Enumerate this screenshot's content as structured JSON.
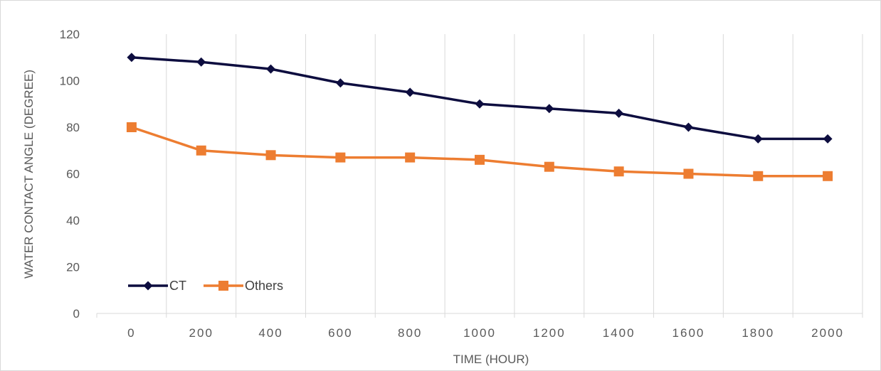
{
  "chart_data": {
    "type": "line",
    "title": "",
    "xlabel": "TIME (HOUR)",
    "ylabel": "WATER CONTACT ANGLE (DEGREE)",
    "x": [
      0,
      200,
      400,
      600,
      800,
      1000,
      1200,
      1400,
      1600,
      1800,
      2000
    ],
    "x_tick_labels": [
      "0",
      "200",
      "400",
      "600",
      "800",
      "1000",
      "1200",
      "1400",
      "1600",
      "1800",
      "2000"
    ],
    "ylim": [
      0,
      120
    ],
    "y_ticks": [
      0,
      20,
      40,
      60,
      80,
      100,
      120
    ],
    "y_tick_labels": [
      "0",
      "20",
      "40",
      "60",
      "80",
      "100",
      "120"
    ],
    "grid": "vertical",
    "legend_position": "bottom-left",
    "series": [
      {
        "name": "CT",
        "color": "#0d0d3f",
        "marker": "diamond",
        "values": [
          110,
          108,
          105,
          99,
          95,
          90,
          88,
          86,
          80,
          75,
          75
        ]
      },
      {
        "name": "Others",
        "color": "#ed7d31",
        "marker": "square",
        "values": [
          80,
          70,
          68,
          67,
          67,
          66,
          63,
          61,
          60,
          59,
          59
        ]
      }
    ]
  }
}
